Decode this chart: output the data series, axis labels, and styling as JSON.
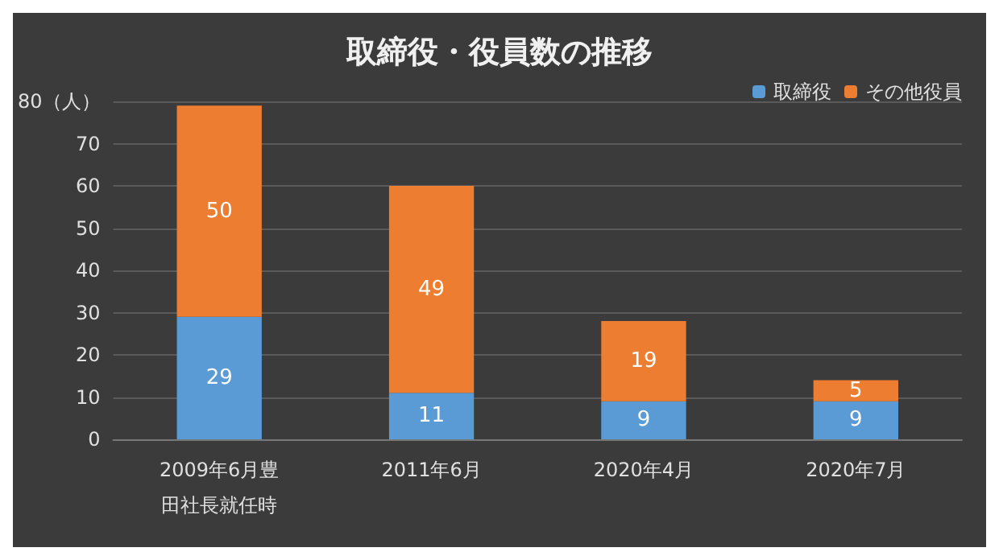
{
  "chart_data": {
    "type": "bar",
    "title": "取締役・役員数の推移",
    "categories": [
      "2009年6月豊田社長就任時",
      "2011年6月",
      "2020年4月",
      "2020年7月"
    ],
    "series": [
      {
        "name": "取締役",
        "color": "#5b9bd5",
        "values": [
          29,
          11,
          9,
          9
        ]
      },
      {
        "name": "その他役員",
        "color": "#ed7d31",
        "values": [
          50,
          49,
          19,
          5
        ]
      }
    ],
    "stacked": true,
    "data_labels": true,
    "ylim": [
      0,
      80
    ],
    "yticks": [
      0,
      10,
      20,
      30,
      40,
      50,
      60,
      70,
      {
        "value": 80,
        "label": "80（人）"
      }
    ],
    "grid": "y",
    "legend": "top right"
  }
}
